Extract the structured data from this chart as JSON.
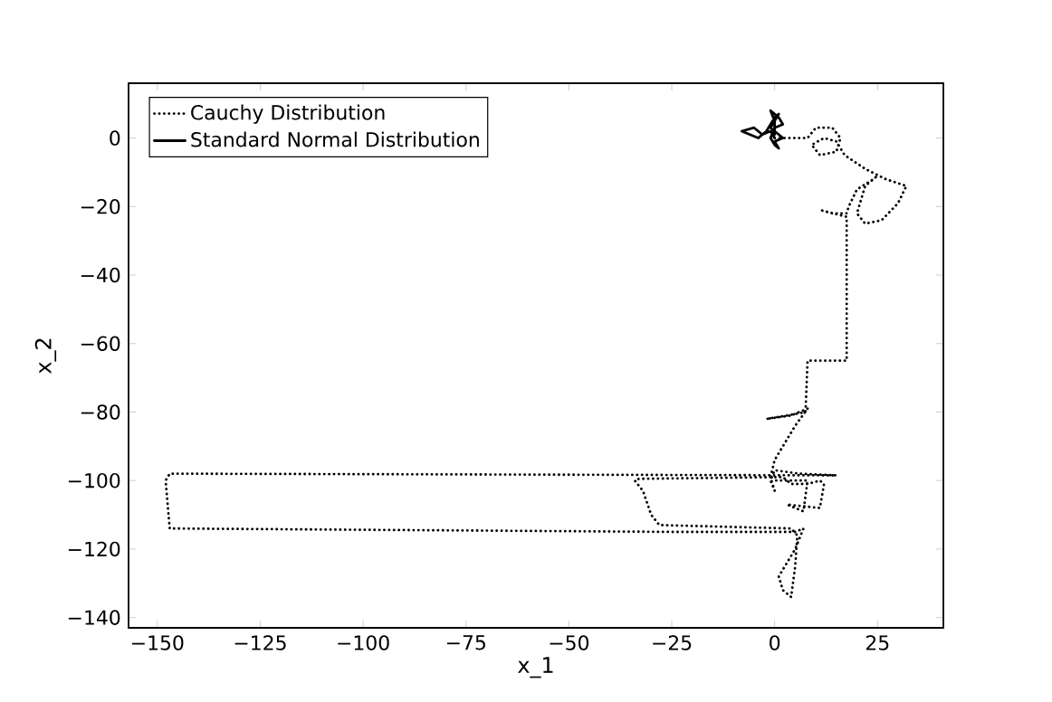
{
  "chart_data": {
    "type": "line",
    "xlabel": "x_1",
    "ylabel": "x_2",
    "xlim": [
      -157,
      41
    ],
    "ylim": [
      -143,
      16
    ],
    "xticks": [
      {
        "value": -150,
        "label": "−150"
      },
      {
        "value": -125,
        "label": "−125"
      },
      {
        "value": -100,
        "label": "−100"
      },
      {
        "value": -75,
        "label": "−75"
      },
      {
        "value": -50,
        "label": "−50"
      },
      {
        "value": -25,
        "label": "−25"
      },
      0,
      25
    ],
    "yticks": [
      {
        "value": -140,
        "label": "−140"
      },
      {
        "value": -120,
        "label": "−120"
      },
      {
        "value": -100,
        "label": "−100"
      },
      {
        "value": -80,
        "label": "−80"
      },
      {
        "value": -60,
        "label": "−60"
      },
      {
        "value": -40,
        "label": "−40"
      },
      {
        "value": -20,
        "label": "−20"
      },
      0
    ],
    "legend": "top left",
    "grid": false,
    "marker": "none",
    "series": [
      {
        "name": "Cauchy Distribution",
        "color": "#000000",
        "line_style": "dotted",
        "x": [
          0,
          8,
          10,
          14,
          16,
          15,
          11,
          9,
          12,
          15,
          17,
          22,
          27,
          32,
          30,
          26,
          22,
          20,
          22,
          25,
          24,
          20,
          18,
          17.5,
          14,
          11,
          17.5,
          17.5,
          8,
          7.5,
          3,
          -2,
          4,
          8,
          5,
          0,
          -1,
          0,
          -1,
          0,
          6,
          15,
          -147,
          -148,
          -147,
          -25,
          5,
          7,
          5,
          1,
          2,
          4,
          5,
          5.5,
          4,
          -28,
          -30,
          -32,
          -34,
          -33,
          2,
          4,
          8,
          11,
          12,
          11,
          3,
          7,
          8,
          0
        ],
        "values": [
          0,
          0,
          3,
          3,
          0,
          -4,
          -5,
          -2,
          0,
          -1,
          -5,
          -9,
          -12,
          -14,
          -19,
          -24,
          -25,
          -22,
          -14,
          -11,
          -12,
          -15,
          -20,
          -22,
          -22,
          -21,
          -23,
          -65,
          -65,
          -80,
          -81,
          -82,
          -81,
          -79,
          -84,
          -94,
          -99,
          -103,
          -100,
          -97,
          -98,
          -98.5,
          -98,
          -100,
          -114,
          -115,
          -115,
          -114,
          -120,
          -128,
          -132,
          -134,
          -125,
          -116,
          -114,
          -113,
          -110,
          -103,
          -100,
          -99.5,
          -99,
          -101,
          -101,
          -100,
          -101,
          -108,
          -107,
          -109,
          -100,
          -100
        ]
      },
      {
        "name": "Standard Normal Distribution",
        "color": "#000000",
        "line_style": "solid",
        "x": [
          0,
          -1,
          -3,
          -5,
          -8,
          -6,
          -4,
          -2,
          0,
          1,
          0,
          -1,
          1,
          2,
          0,
          1,
          0,
          -1,
          0,
          2,
          1,
          -1,
          0,
          0
        ],
        "values": [
          0,
          2,
          1,
          3,
          2,
          1,
          0,
          2,
          6,
          7,
          5,
          3,
          1,
          0,
          -1,
          -3,
          -2,
          0,
          3,
          4,
          6,
          8,
          5,
          1
        ]
      }
    ]
  }
}
